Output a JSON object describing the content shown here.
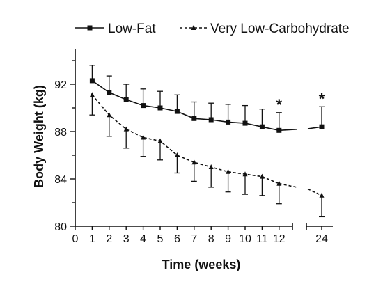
{
  "chart_data": {
    "type": "line",
    "xlabel": "Time (weeks)",
    "ylabel": "Body Weight (kg)",
    "x_ticks": [
      0,
      1,
      2,
      3,
      4,
      5,
      6,
      7,
      8,
      9,
      10,
      11,
      12,
      24
    ],
    "y_ticks": [
      80,
      84,
      88,
      92
    ],
    "ylim": [
      80,
      95
    ],
    "x_axis_break": "between 12 and 24",
    "legend_position": "top",
    "grid": false,
    "series": [
      {
        "name": "Low-Fat",
        "marker": "square",
        "line_style": "solid",
        "color": "#111111",
        "x": [
          1,
          2,
          3,
          4,
          5,
          6,
          7,
          8,
          9,
          10,
          11,
          12,
          24
        ],
        "y": [
          92.3,
          91.3,
          90.7,
          90.2,
          90.0,
          89.7,
          89.1,
          89.0,
          88.8,
          88.7,
          88.4,
          88.1,
          88.4
        ],
        "error_upper": [
          93.6,
          92.7,
          92.0,
          91.6,
          91.4,
          91.1,
          90.5,
          90.4,
          90.3,
          90.2,
          89.9,
          89.6,
          90.1
        ]
      },
      {
        "name": "Very Low-Carbohydrate",
        "marker": "triangle",
        "line_style": "dashed",
        "color": "#111111",
        "x": [
          1,
          2,
          3,
          4,
          5,
          6,
          7,
          8,
          9,
          10,
          11,
          12,
          24
        ],
        "y": [
          91.1,
          89.4,
          88.2,
          87.5,
          87.2,
          86.0,
          85.4,
          85.0,
          84.6,
          84.4,
          84.2,
          83.6,
          82.6
        ],
        "error_lower": [
          89.4,
          87.6,
          86.6,
          85.9,
          85.6,
          84.5,
          83.8,
          83.3,
          82.9,
          82.7,
          82.6,
          81.9,
          80.8
        ]
      }
    ],
    "annotations": [
      {
        "text": "*",
        "x": 12
      },
      {
        "text": "*",
        "x": 24
      }
    ]
  }
}
